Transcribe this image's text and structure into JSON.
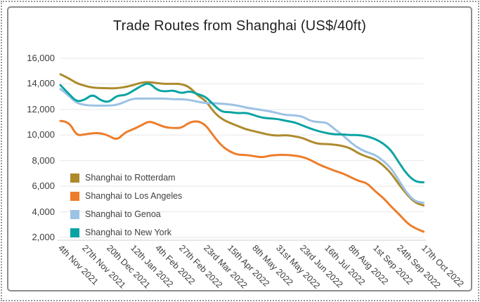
{
  "chart_data": {
    "type": "line",
    "title": "Trade Routes from Shanghai (US$/40ft)",
    "xlabel": "",
    "ylabel": "",
    "ylim": [
      2000,
      16000
    ],
    "grid": "horizontal",
    "legend_position": "inside-left",
    "yticks": [
      16000,
      14000,
      12000,
      10000,
      8000,
      6000,
      4000,
      2000
    ],
    "ytick_labels": [
      "16,000",
      "14,000",
      "12,000",
      "10,000",
      "8,000",
      "6,000",
      "4,000",
      "2,000"
    ],
    "categories": [
      "4th Nov 2021",
      "27th Nov 2021",
      "20th Dec 2021",
      "12th Jan 2022",
      "4th Feb 2022",
      "27th Feb 2022",
      "23rd Mar 2022",
      "15th Apr 2022",
      "8th May 2022",
      "31st May 2022",
      "23rd Jun 2022",
      "16th Jul 2022",
      "8th Aug 2022",
      "1st Sep 2022",
      "24th Sep 2022",
      "17th Oct 2022"
    ],
    "x_sampling": "46 uniform points; axis ticks fall on every 3rd point (indices 0,3,...,45)",
    "series": [
      {
        "name": "Shanghai to Rotterdam",
        "color": "#ad8b2d",
        "values": [
          14750,
          14450,
          14050,
          13850,
          13700,
          13680,
          13650,
          13660,
          13750,
          13900,
          14100,
          14150,
          14050,
          14000,
          14000,
          14000,
          13750,
          13100,
          12700,
          11800,
          11250,
          10950,
          10700,
          10450,
          10300,
          10150,
          10000,
          9950,
          10000,
          9900,
          9780,
          9500,
          9300,
          9300,
          9250,
          9150,
          8950,
          8550,
          8300,
          8100,
          7650,
          7000,
          6100,
          5300,
          4700,
          4500
        ]
      },
      {
        "name": "Shanghai to Los Angeles",
        "color": "#ed7d2b",
        "values": [
          11100,
          11100,
          9950,
          10050,
          10150,
          10150,
          9950,
          9600,
          10200,
          10450,
          10750,
          11100,
          10850,
          10600,
          10550,
          10550,
          11000,
          11100,
          10800,
          9900,
          9150,
          8700,
          8450,
          8450,
          8350,
          8250,
          8400,
          8450,
          8450,
          8400,
          8300,
          8050,
          7700,
          7450,
          7200,
          7000,
          6700,
          6400,
          6250,
          5600,
          5100,
          4400,
          3800,
          3100,
          2700,
          2450
        ]
      },
      {
        "name": "Shanghai to Genoa",
        "color": "#9cc2e5",
        "values": [
          13600,
          13100,
          12500,
          12350,
          12300,
          12300,
          12300,
          12350,
          12600,
          12850,
          12850,
          12850,
          12850,
          12850,
          12800,
          12800,
          12750,
          12600,
          12500,
          12500,
          12450,
          12400,
          12300,
          12150,
          12050,
          11950,
          11850,
          11700,
          11550,
          11550,
          11450,
          11100,
          11000,
          11000,
          10450,
          10000,
          9400,
          8950,
          8650,
          8450,
          8000,
          7400,
          6400,
          5400,
          4800,
          4700
        ]
      },
      {
        "name": "Shanghai to New York",
        "color": "#0aa3a3",
        "values": [
          13900,
          13250,
          12600,
          12750,
          13200,
          12700,
          12550,
          13100,
          13100,
          13450,
          13850,
          14100,
          13500,
          13400,
          13500,
          13250,
          13450,
          13200,
          13000,
          12350,
          11800,
          11800,
          11700,
          11750,
          11550,
          11350,
          11300,
          11250,
          11100,
          11000,
          10750,
          10500,
          10300,
          10150,
          10050,
          10050,
          10000,
          10000,
          9900,
          9700,
          9350,
          8800,
          7800,
          6900,
          6350,
          6300
        ]
      }
    ],
    "colors": {
      "gridline": "#e7e7e7",
      "axis_line": "#cfcfcf",
      "title_text": "#1f1f1f",
      "tick_text": "#3c3c3c"
    }
  }
}
